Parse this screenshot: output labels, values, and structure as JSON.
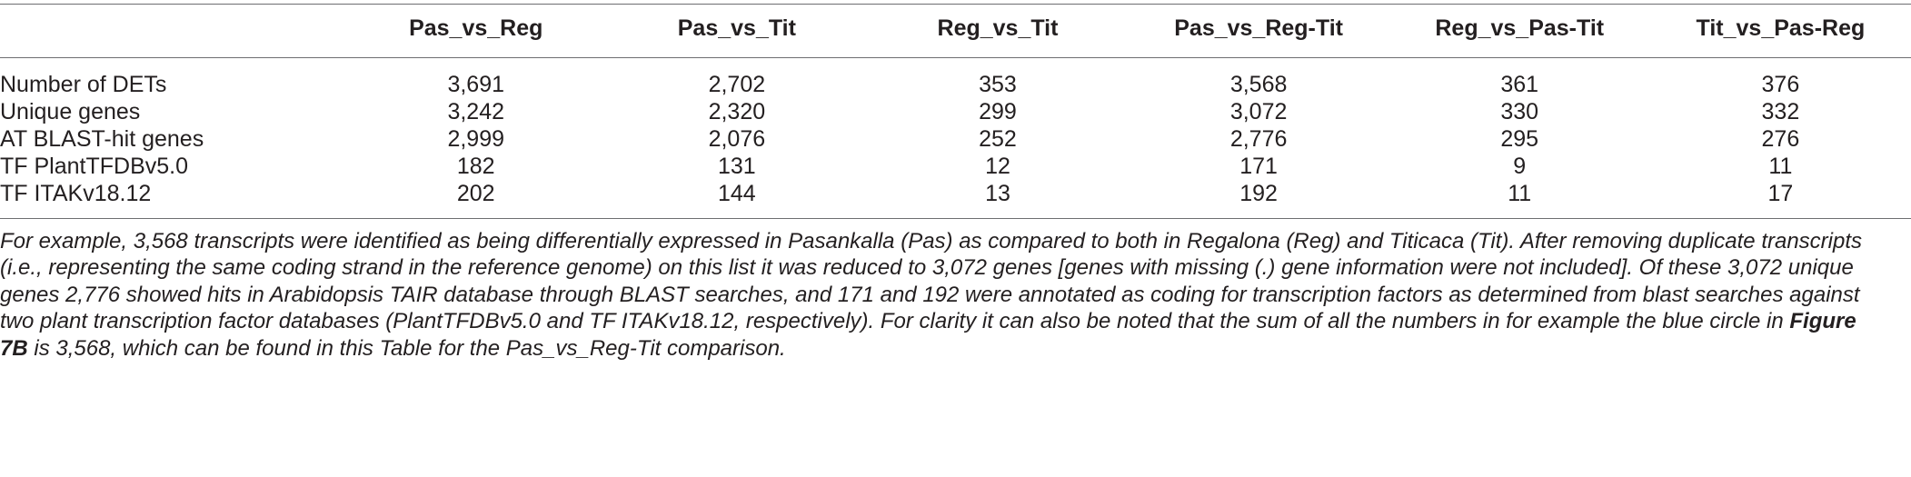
{
  "table": {
    "headers": [
      "",
      "Pas_vs_Reg",
      "Pas_vs_Tit",
      "Reg_vs_Tit",
      "Pas_vs_Reg-Tit",
      "Reg_vs_Pas-Tit",
      "Tit_vs_Pas-Reg"
    ],
    "rows": [
      {
        "label": "Number of DETs",
        "values": [
          "3,691",
          "2,702",
          "353",
          "3,568",
          "361",
          "376"
        ]
      },
      {
        "label": "Unique genes",
        "values": [
          "3,242",
          "2,320",
          "299",
          "3,072",
          "330",
          "332"
        ]
      },
      {
        "label": "AT BLAST-hit genes",
        "values": [
          "2,999",
          "2,076",
          "252",
          "2,776",
          "295",
          "276"
        ]
      },
      {
        "label": "TF PlantTFDBv5.0",
        "values": [
          "182",
          "131",
          "12",
          "171",
          "9",
          "11"
        ]
      },
      {
        "label": "TF ITAKv18.12",
        "values": [
          "202",
          "144",
          "13",
          "192",
          "11",
          "17"
        ]
      }
    ]
  },
  "footnote": {
    "text_before": "For example, 3,568 transcripts were identified as being differentially expressed in Pasankalla (Pas) as compared to both in Regalona (Reg) and Titicaca (Tit). After removing duplicate transcripts (i.e., representing the same coding strand in the reference genome) on this list it was reduced to 3,072 genes [genes with missing (.) gene information were not included]. Of these 3,072 unique genes 2,776 showed hits in Arabidopsis TAIR database through BLAST searches, and 171 and 192 were annotated as coding for transcription factors as determined from blast searches against two plant transcription factor databases (PlantTFDBv5.0 and TF ITAKv18.12, respectively). For clarity it can also be noted that the sum of all the numbers in for example the blue circle in ",
    "figure_ref": "Figure 7B",
    "text_after": " is 3,568, which can be found in this Table for the Pas_vs_Reg-Tit comparison."
  }
}
